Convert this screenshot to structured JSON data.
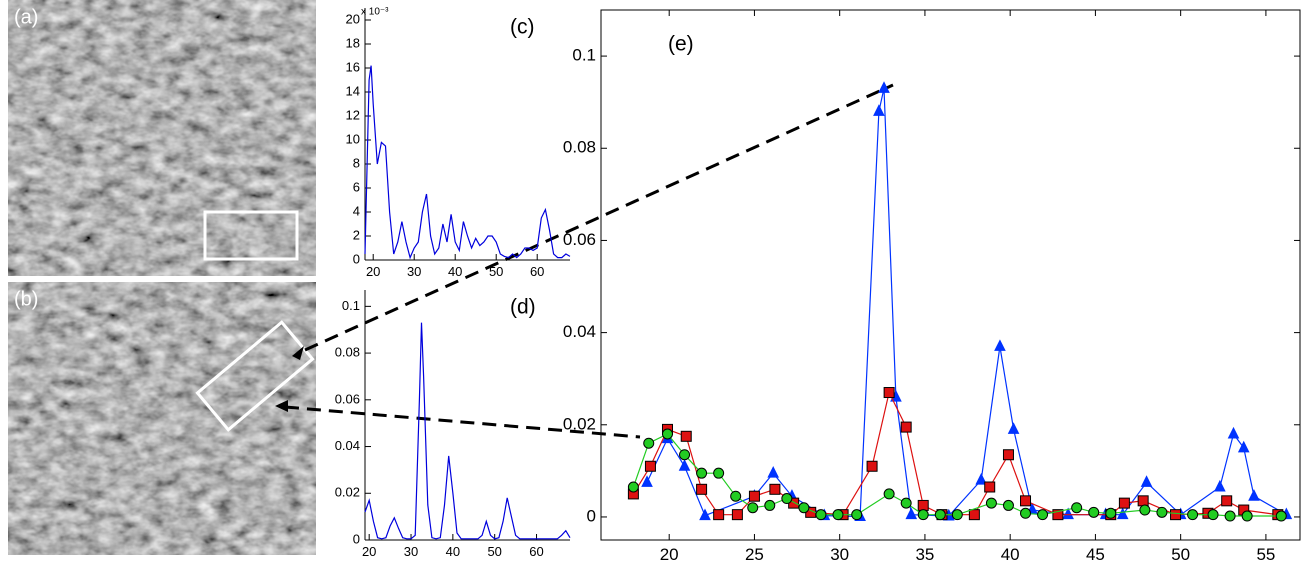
{
  "images": [
    {
      "label": "(a)"
    },
    {
      "label": "(b)"
    }
  ],
  "chart_data": [
    {
      "type": "line",
      "label": "(c)",
      "ylabel_multiplier": "x 10⁻³",
      "xlim": [
        18,
        68
      ],
      "ylim": [
        0,
        21
      ],
      "xticks": [
        20,
        30,
        40,
        50,
        60
      ],
      "yticks": [
        0,
        2,
        4,
        6,
        8,
        10,
        12,
        14,
        16,
        18,
        20
      ],
      "box": false,
      "x": [
        18,
        19,
        19.5,
        20,
        21,
        22,
        23,
        24,
        25,
        26,
        27,
        28,
        29,
        30,
        31,
        32,
        33,
        34,
        35,
        36,
        37,
        38,
        39,
        40,
        41,
        42,
        43,
        44,
        45,
        46,
        47,
        48,
        49,
        50,
        51,
        52,
        53,
        54,
        55,
        56,
        57,
        58,
        59,
        60,
        61,
        62,
        63,
        64,
        65,
        66,
        67,
        68
      ],
      "series": [
        {
          "color": "#0000dd",
          "values": [
            0.5,
            15,
            16.2,
            13,
            8,
            9.8,
            9.5,
            4,
            0.5,
            1.5,
            3.2,
            1.5,
            0.2,
            1,
            1.5,
            4,
            5.5,
            2,
            0.5,
            1,
            3,
            1.5,
            3.8,
            1.5,
            0.8,
            3.2,
            2,
            1,
            1.8,
            1.2,
            1.5,
            2,
            2,
            1.5,
            0.5,
            0.3,
            0.2,
            0.5,
            0.2,
            0.5,
            1,
            1,
            0.8,
            1,
            3.5,
            4.2,
            2.5,
            0.5,
            0.2,
            0.2,
            0.5,
            0.3
          ]
        }
      ]
    },
    {
      "type": "line",
      "label": "(d)",
      "xlim": [
        19,
        68
      ],
      "ylim": [
        0,
        0.107
      ],
      "xticks": [
        20,
        30,
        40,
        50,
        60
      ],
      "yticks": [
        0,
        0.02,
        0.04,
        0.06,
        0.08,
        0.1
      ],
      "box": false,
      "x": [
        19,
        20,
        21,
        22,
        23,
        24,
        25,
        26,
        27,
        28,
        29,
        30,
        31,
        32,
        32.5,
        33,
        34,
        35,
        36,
        37,
        38,
        39,
        40,
        41,
        42,
        44,
        46,
        47,
        48,
        49,
        50,
        51,
        52,
        53,
        54,
        55,
        56,
        60,
        65,
        66,
        67,
        68
      ],
      "series": [
        {
          "color": "#0000dd",
          "values": [
            0.012,
            0.017,
            0.008,
            0.001,
            0.0005,
            0.001,
            0.006,
            0.0095,
            0.005,
            0.001,
            0.0005,
            0.0005,
            0.002,
            0.06,
            0.093,
            0.07,
            0.015,
            0.001,
            0.0005,
            0.001,
            0.015,
            0.036,
            0.02,
            0.003,
            0.0005,
            0.0005,
            0.0005,
            0.002,
            0.008,
            0.002,
            0.0005,
            0.001,
            0.008,
            0.018,
            0.01,
            0.002,
            0.0005,
            0.0005,
            0.0005,
            0.002,
            0.004,
            0.001
          ]
        }
      ]
    },
    {
      "type": "line",
      "label": "(e)",
      "xlim": [
        16,
        57
      ],
      "ylim": [
        -0.005,
        0.11
      ],
      "xticks": [
        20,
        25,
        30,
        35,
        40,
        45,
        50,
        55
      ],
      "yticks": [
        0,
        0.02,
        0.04,
        0.06,
        0.08,
        0.1
      ],
      "box": true,
      "series": [
        {
          "color": "#0033ff",
          "marker": "triangle",
          "x": [
            18.7,
            19.9,
            20.9,
            22.1,
            25.0,
            26.1,
            27.2,
            29.1,
            31.2,
            32.3,
            32.6,
            33.3,
            34.2,
            36.4,
            38.3,
            39.4,
            40.2,
            41.3,
            43.4,
            45.6,
            46.6,
            48.0,
            50.0,
            52.3,
            53.1,
            53.7,
            54.3,
            56.2
          ],
          "values": [
            0.0075,
            0.017,
            0.011,
            0.0003,
            0.0045,
            0.0095,
            0.0045,
            0.0003,
            0.0001,
            0.088,
            0.093,
            0.026,
            0.0005,
            0.0002,
            0.008,
            0.037,
            0.019,
            0.0015,
            0.0005,
            0.0005,
            0.0005,
            0.0075,
            0.0005,
            0.0065,
            0.018,
            0.015,
            0.0045,
            0.0005
          ]
        },
        {
          "color": "#dd1111",
          "marker": "square",
          "x": [
            17.9,
            18.9,
            19.9,
            21.0,
            21.9,
            22.9,
            24.0,
            25.0,
            26.2,
            27.3,
            28.3,
            30.2,
            31.9,
            32.9,
            33.9,
            34.9,
            36.0,
            37.9,
            38.8,
            39.9,
            40.9,
            42.8,
            45.9,
            46.7,
            47.8,
            49.7,
            51.6,
            52.7,
            53.7,
            55.7
          ],
          "values": [
            0.005,
            0.011,
            0.019,
            0.0175,
            0.006,
            0.0005,
            0.0005,
            0.0045,
            0.006,
            0.003,
            0.001,
            0.0005,
            0.011,
            0.027,
            0.0195,
            0.0025,
            0.0005,
            0.0005,
            0.0065,
            0.0135,
            0.0035,
            0.0005,
            0.0005,
            0.003,
            0.0035,
            0.0005,
            0.0008,
            0.0035,
            0.0015,
            0.0005
          ]
        },
        {
          "color": "#22cc22",
          "marker": "circle",
          "x": [
            17.9,
            18.8,
            19.9,
            20.9,
            21.9,
            22.9,
            23.9,
            24.9,
            25.9,
            26.9,
            27.9,
            28.9,
            29.9,
            31.0,
            32.9,
            33.9,
            34.9,
            35.9,
            36.9,
            38.9,
            39.9,
            40.9,
            41.9,
            43.9,
            44.9,
            45.9,
            47.9,
            48.9,
            50.7,
            51.9,
            52.9,
            53.9,
            55.9
          ],
          "values": [
            0.0065,
            0.016,
            0.018,
            0.0135,
            0.0095,
            0.0095,
            0.0045,
            0.002,
            0.0025,
            0.004,
            0.002,
            0.0005,
            0.0005,
            0.0005,
            0.005,
            0.003,
            0.0005,
            0.0005,
            0.0005,
            0.003,
            0.0025,
            0.0008,
            0.0005,
            0.002,
            0.001,
            0.0008,
            0.0015,
            0.001,
            0.0005,
            0.0005,
            0.0002,
            0.0002,
            0.0002
          ]
        }
      ]
    }
  ]
}
